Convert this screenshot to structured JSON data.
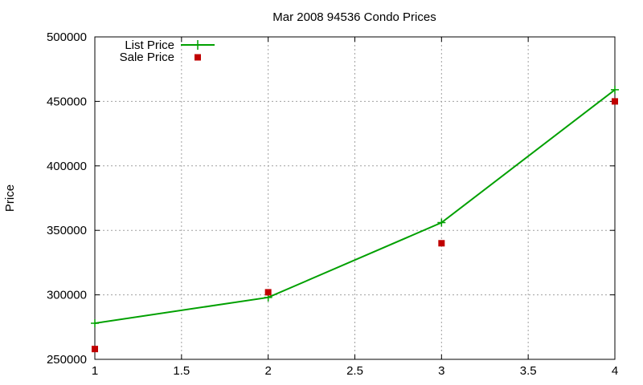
{
  "chart_data": {
    "type": "line",
    "title": "Mar 2008 94536 Condo Prices",
    "xlabel": "",
    "ylabel": "Price",
    "xlim": [
      1,
      4
    ],
    "ylim": [
      250000,
      500000
    ],
    "xticks": [
      "1",
      "1.5",
      "2",
      "2.5",
      "3",
      "3.5",
      "4"
    ],
    "yticks": [
      "250000",
      "300000",
      "350000",
      "400000",
      "450000",
      "500000"
    ],
    "grid": true,
    "legend": "top-left",
    "x": [
      1,
      2,
      3,
      4
    ],
    "series": [
      {
        "name": "List Price",
        "style": "line+plus",
        "color": "#00a000",
        "values": [
          278000,
          298000,
          356000,
          459000
        ]
      },
      {
        "name": "Sale Price",
        "style": "square",
        "color": "#c00000",
        "values": [
          258000,
          302000,
          340000,
          450000
        ]
      }
    ]
  }
}
